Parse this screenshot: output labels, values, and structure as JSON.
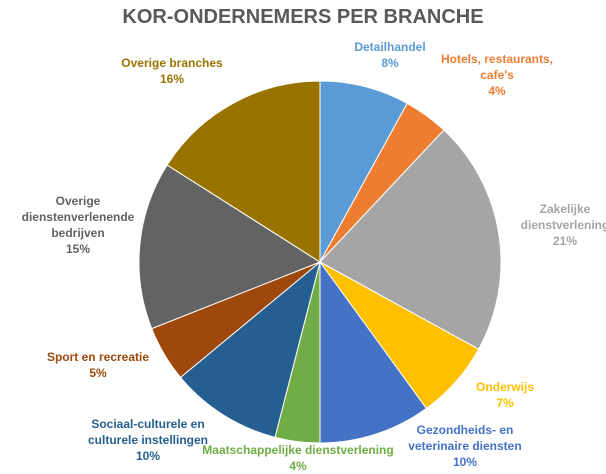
{
  "chart_data": {
    "type": "pie",
    "title": "KOR-ONDERNEMERS PER BRANCHE",
    "categories": [
      "Detailhandel",
      "Hotels, restaurants, cafe's",
      "Zakelijke dienstverlening",
      "Onderwijs",
      "Gezondheids- en veterinaire diensten",
      "Maatschappelijke dienstverlening",
      "Sociaal-culturele en culturele instellingen",
      "Sport en recreatie",
      "Overige dienstenverlenende bedrijven",
      "Overige branches"
    ],
    "values": [
      8,
      4,
      21,
      7,
      10,
      4,
      10,
      5,
      15,
      16
    ],
    "value_labels": [
      "8%",
      "4%",
      "21%",
      "7%",
      "10%",
      "4%",
      "10%",
      "5%",
      "15%",
      "16%"
    ],
    "colors": [
      "#5b9bd5",
      "#ed7d31",
      "#a5a5a5",
      "#ffc000",
      "#4472c4",
      "#70ad47",
      "#255e91",
      "#9e480e",
      "#636363",
      "#997300"
    ]
  }
}
